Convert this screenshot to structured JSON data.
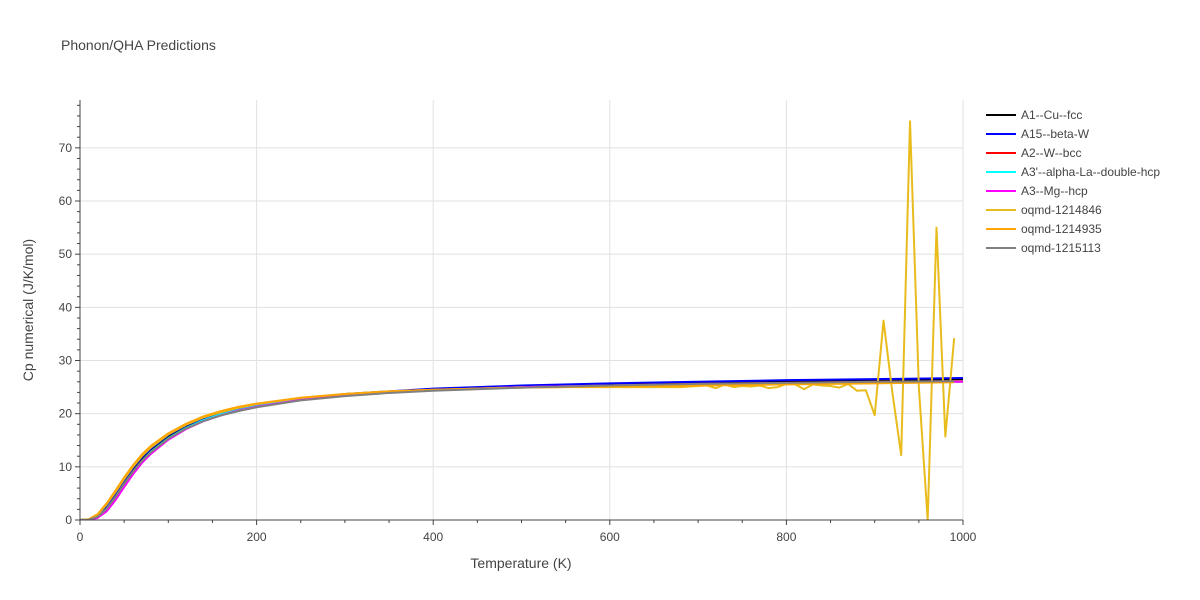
{
  "chart_data": {
    "type": "line",
    "title": "Phonon/QHA Predictions",
    "xlabel": "Temperature (K)",
    "ylabel": "Cp numerical (J/K/mol)",
    "xlim": [
      0,
      1000
    ],
    "ylim": [
      0,
      79
    ],
    "x_ticks": [
      0,
      200,
      400,
      600,
      800,
      1000
    ],
    "y_ticks": [
      0,
      10,
      20,
      30,
      40,
      50,
      60,
      70
    ],
    "grid": true,
    "legend_position": "right",
    "series": [
      {
        "name": "A1--Cu--fcc",
        "color": "#000000",
        "x": [
          0,
          10,
          20,
          30,
          40,
          50,
          60,
          70,
          80,
          100,
          120,
          140,
          160,
          180,
          200,
          250,
          300,
          350,
          400,
          500,
          600,
          700,
          800,
          900,
          1000
        ],
        "y": [
          0,
          0.1,
          0.8,
          2.5,
          4.8,
          7.3,
          9.6,
          11.6,
          13.2,
          15.8,
          17.7,
          19.1,
          20.1,
          20.9,
          21.6,
          22.8,
          23.6,
          24.1,
          24.6,
          25.2,
          25.6,
          25.9,
          26.1,
          26.3,
          26.5
        ]
      },
      {
        "name": "A15--beta-W",
        "color": "#0000ff",
        "x": [
          0,
          10,
          20,
          30,
          40,
          50,
          60,
          70,
          80,
          100,
          120,
          140,
          160,
          180,
          200,
          250,
          300,
          350,
          400,
          500,
          600,
          700,
          800,
          900,
          1000
        ],
        "y": [
          0,
          0.1,
          0.9,
          2.7,
          5.0,
          7.5,
          9.8,
          11.8,
          13.4,
          16.0,
          17.8,
          19.2,
          20.2,
          21.0,
          21.7,
          22.9,
          23.7,
          24.2,
          24.7,
          25.3,
          25.7,
          26.0,
          26.3,
          26.5,
          26.7
        ]
      },
      {
        "name": "A2--W--bcc",
        "color": "#ff0000",
        "x": [
          0,
          10,
          20,
          30,
          40,
          50,
          60,
          70,
          80,
          100,
          120,
          140,
          160,
          180,
          200,
          250,
          300,
          350,
          400,
          500,
          600,
          700,
          800,
          900,
          1000
        ],
        "y": [
          0,
          0.05,
          0.6,
          2.0,
          4.2,
          6.7,
          9.0,
          11.0,
          12.7,
          15.3,
          17.2,
          18.7,
          19.8,
          20.6,
          21.3,
          22.6,
          23.4,
          24.0,
          24.4,
          25.0,
          25.3,
          25.6,
          25.8,
          26.0,
          26.1
        ]
      },
      {
        "name": "A3'--alpha-La--double-hcp",
        "color": "#00ffff",
        "x": [
          0,
          10,
          20,
          30,
          40,
          50,
          60,
          70,
          80,
          100,
          120,
          140,
          160,
          180,
          200,
          250,
          300,
          350,
          400,
          500,
          600,
          700,
          800,
          900,
          1000
        ],
        "y": [
          0,
          0.05,
          0.6,
          2.1,
          4.3,
          6.8,
          9.1,
          11.1,
          12.8,
          15.4,
          17.3,
          18.8,
          19.9,
          20.7,
          21.4,
          22.7,
          23.5,
          24.0,
          24.4,
          25.0,
          25.3,
          25.5,
          25.7,
          25.9,
          26.0
        ]
      },
      {
        "name": "A3--Mg--hcp",
        "color": "#ff00ff",
        "x": [
          0,
          10,
          20,
          30,
          40,
          50,
          60,
          70,
          80,
          100,
          120,
          140,
          160,
          180,
          200,
          250,
          300,
          350,
          400,
          500,
          600,
          700,
          800,
          900,
          1000
        ],
        "y": [
          0,
          0.03,
          0.4,
          1.6,
          3.7,
          6.2,
          8.6,
          10.7,
          12.4,
          15.1,
          17.1,
          18.6,
          19.7,
          20.6,
          21.3,
          22.6,
          23.4,
          24.0,
          24.4,
          25.0,
          25.3,
          25.5,
          25.7,
          25.9,
          26.0
        ]
      },
      {
        "name": "oqmd-1214846",
        "color": "#e8bc1c",
        "x": [
          0,
          10,
          20,
          30,
          40,
          50,
          60,
          70,
          80,
          100,
          120,
          140,
          160,
          180,
          200,
          250,
          300,
          350,
          400,
          450,
          500,
          550,
          600,
          620,
          640,
          660,
          680,
          700,
          710,
          720,
          730,
          740,
          750,
          760,
          770,
          780,
          790,
          800,
          810,
          820,
          830,
          840,
          850,
          860,
          870,
          880,
          890,
          900,
          910,
          920,
          930,
          940,
          950,
          960,
          970,
          980,
          990
        ],
        "y": [
          0,
          0.1,
          1.0,
          2.9,
          5.2,
          7.7,
          10.0,
          12.0,
          13.6,
          16.1,
          17.9,
          19.3,
          20.3,
          21.1,
          21.8,
          23.0,
          23.7,
          24.2,
          24.5,
          24.7,
          24.9,
          25.0,
          25.0,
          25.0,
          25.0,
          25.0,
          25.0,
          25.2,
          25.3,
          24.8,
          25.5,
          25.0,
          25.2,
          25.1,
          25.3,
          24.8,
          25.0,
          25.6,
          25.5,
          24.6,
          25.5,
          25.3,
          25.2,
          24.9,
          25.6,
          24.3,
          24.4,
          19.7,
          37.5,
          24.0,
          12.2,
          75.0,
          25.0,
          0,
          55.0,
          15.7,
          34.2
        ]
      },
      {
        "name": "oqmd-1214935",
        "color": "#ffa500",
        "x": [
          0,
          10,
          20,
          30,
          40,
          50,
          60,
          70,
          80,
          100,
          120,
          140,
          160,
          180,
          200,
          250,
          300,
          350,
          400,
          500,
          600,
          700,
          800,
          900,
          990
        ],
        "y": [
          0,
          0.15,
          1.1,
          3.1,
          5.5,
          8.0,
          10.3,
          12.3,
          13.9,
          16.3,
          18.1,
          19.5,
          20.5,
          21.3,
          21.9,
          23.0,
          23.7,
          24.2,
          24.5,
          24.9,
          25.1,
          25.3,
          25.5,
          25.7,
          25.9
        ]
      },
      {
        "name": "oqmd-1215113",
        "color": "#808080",
        "x": [
          0,
          10,
          20,
          30,
          40,
          50,
          60,
          70,
          80,
          100,
          120,
          140,
          160,
          180,
          200,
          250,
          300,
          350,
          400,
          500,
          600,
          700,
          800,
          900,
          990
        ],
        "y": [
          0,
          0.05,
          0.6,
          2.1,
          4.3,
          6.8,
          9.1,
          11.1,
          12.7,
          15.3,
          17.2,
          18.6,
          19.7,
          20.5,
          21.2,
          22.5,
          23.3,
          23.9,
          24.3,
          24.9,
          25.3,
          25.6,
          25.8,
          26.0,
          26.1
        ]
      }
    ]
  }
}
